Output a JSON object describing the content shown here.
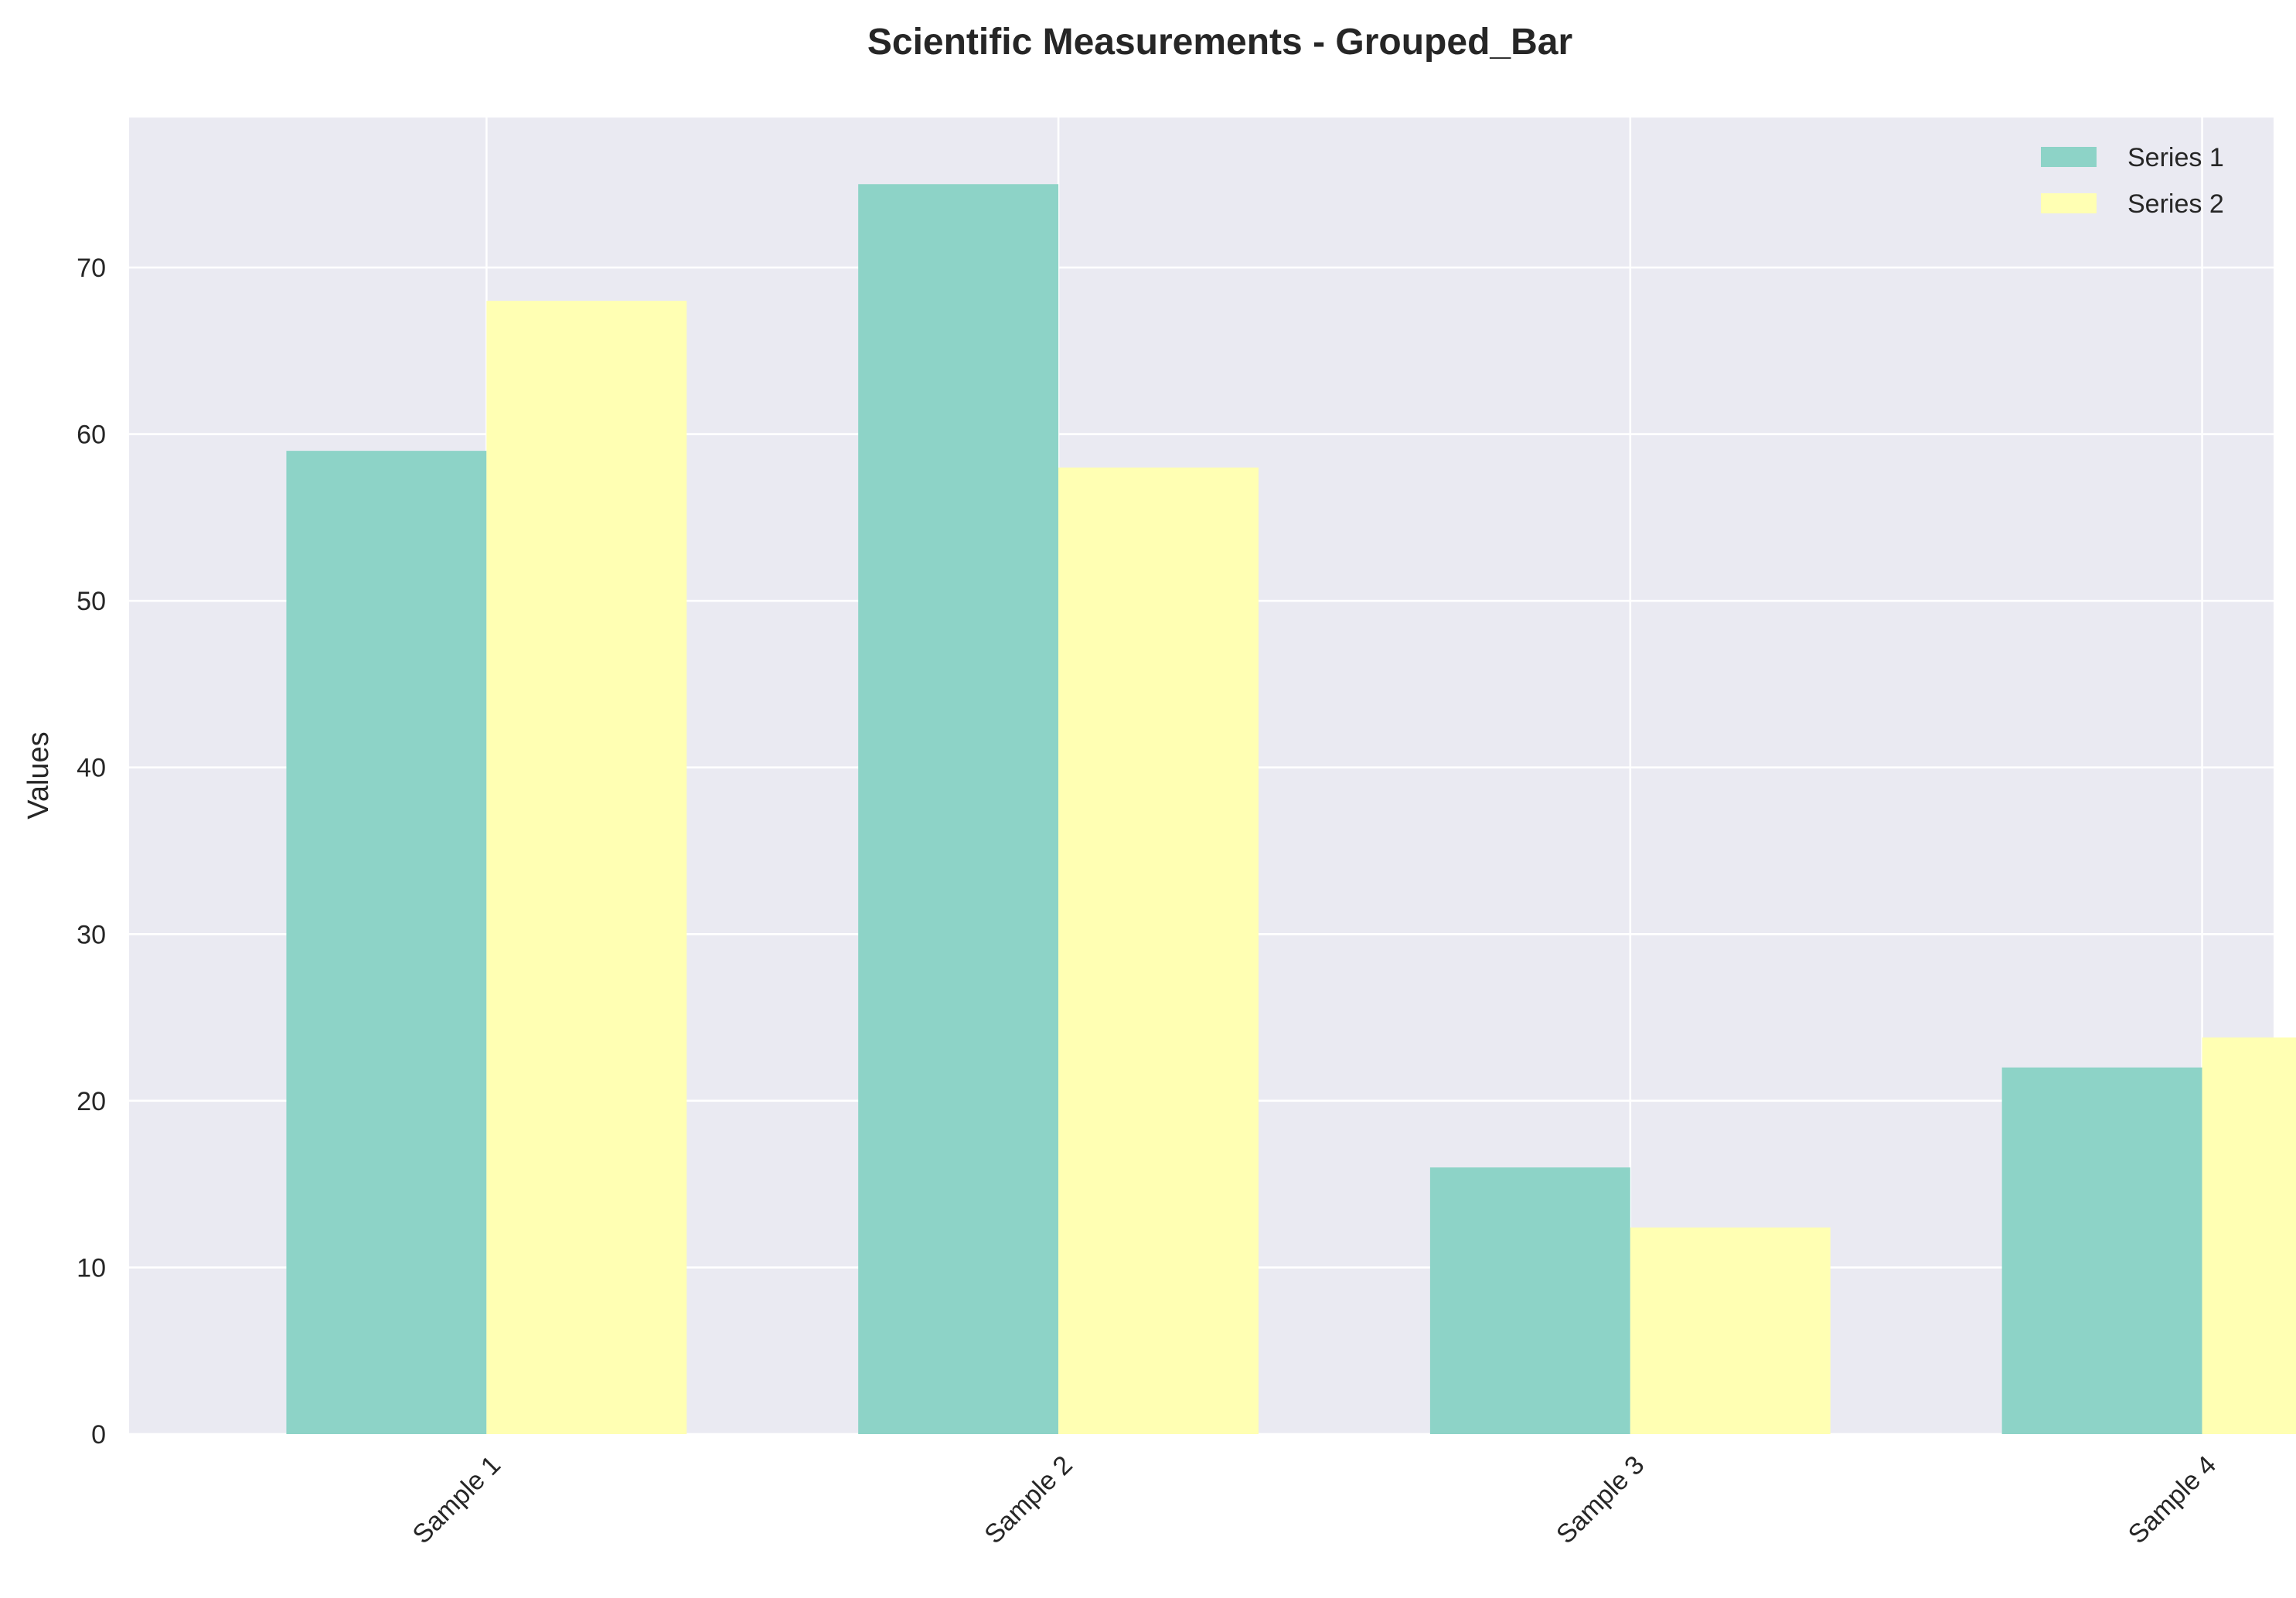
{
  "chart_data": {
    "type": "bar",
    "title": "Scientific Measurements - Grouped_Bar",
    "xlabel": "",
    "ylabel": "Values",
    "categories": [
      "Sample 1",
      "Sample 2",
      "Sample 3",
      "Sample 4"
    ],
    "series": [
      {
        "name": "Series 1",
        "color": "#8dd3c7",
        "values": [
          59,
          75,
          16,
          22
        ]
      },
      {
        "name": "Series 2",
        "color": "#ffffb3",
        "values": [
          68,
          58,
          12.4,
          23.8
        ]
      }
    ],
    "ylim": [
      0,
      79
    ],
    "yticks": [
      0,
      10,
      20,
      30,
      40,
      50,
      60,
      70
    ],
    "grid": true,
    "legend_position": "top-right",
    "plot_background": "#eaeaf2",
    "grid_color": "#ffffff"
  }
}
